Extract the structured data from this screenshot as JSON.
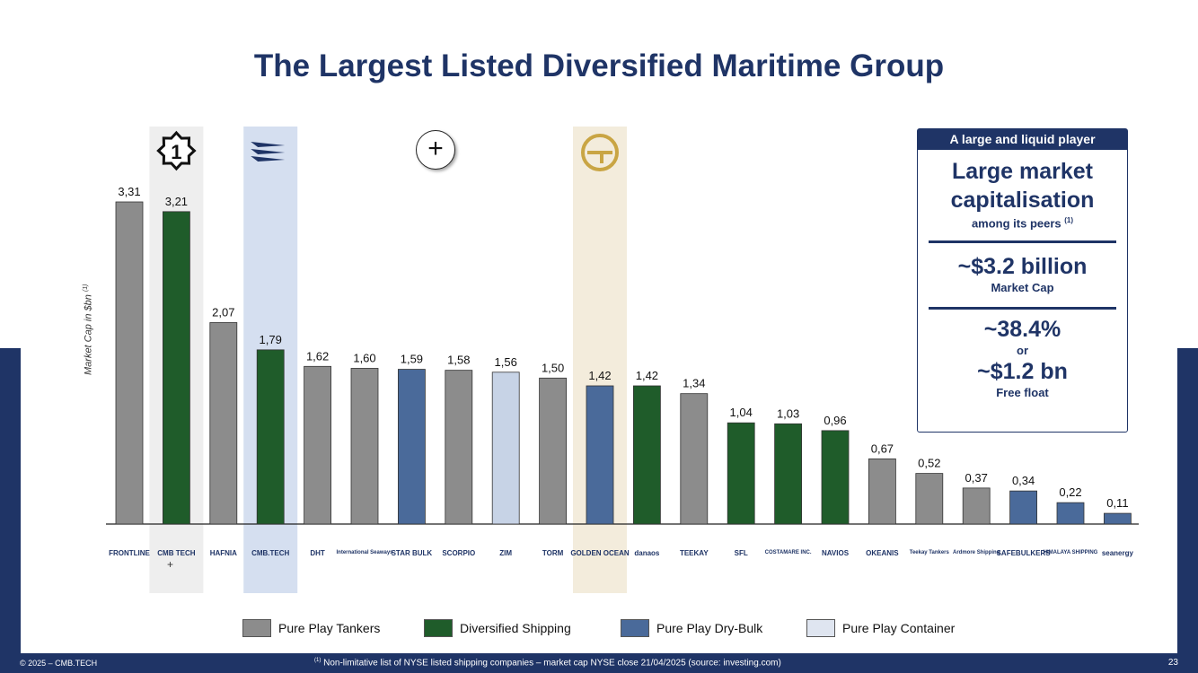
{
  "title": "The Largest Listed Diversified Maritime Group",
  "highlight_marker": "1",
  "plus_sign": "+",
  "chart_data": {
    "type": "bar",
    "ylabel": "Market Cap in $bn",
    "ylabel_note": "(1)",
    "categories": [
      "FRONTLINE",
      "CMB.TECH + Golden Ocean",
      "Hafnia",
      "CMB.TECH",
      "DHT",
      "International Seaways",
      "Star Bulk",
      "Scorpio Tankers",
      "ZIM",
      "TORM",
      "Golden Ocean",
      "Danaos",
      "Teekay",
      "SFL",
      "Costamare",
      "Navios Maritime Partners",
      "Okeanis",
      "Teekay Tankers",
      "Ardmore Shipping",
      "Safe Bulkers",
      "Himalaya Shipping",
      "Seanergy"
    ],
    "values": [
      3.31,
      3.21,
      2.07,
      1.79,
      1.62,
      1.6,
      1.59,
      1.58,
      1.56,
      1.5,
      1.42,
      1.42,
      1.34,
      1.04,
      1.03,
      0.96,
      0.67,
      0.52,
      0.37,
      0.34,
      0.22,
      0.11
    ],
    "value_labels": [
      "3,31",
      "3,21",
      "2,07",
      "1,79",
      "1,62",
      "1,60",
      "1,59",
      "1,58",
      "1,56",
      "1,50",
      "1,42",
      "1,42",
      "1,34",
      "1,04",
      "1,03",
      "0,96",
      "0,67",
      "0,52",
      "0,37",
      "0,34",
      "0,22",
      "0,11"
    ],
    "groups": [
      "tanker",
      "diversified",
      "tanker",
      "diversified",
      "tanker",
      "tanker",
      "drybulk",
      "tanker",
      "container",
      "tanker",
      "drybulk",
      "diversified",
      "tanker",
      "diversified",
      "diversified",
      "diversified",
      "tanker",
      "tanker",
      "tanker",
      "drybulk",
      "drybulk",
      "drybulk"
    ],
    "highlighted": [
      1,
      3,
      10
    ],
    "legend": [
      {
        "key": "tanker",
        "label": "Pure Play Tankers",
        "color": "#8c8c8c"
      },
      {
        "key": "diversified",
        "label": "Diversified Shipping",
        "color": "#1f5c2a"
      },
      {
        "key": "drybulk",
        "label": "Pure Play Dry-Bulk",
        "color": "#4a6a9a"
      },
      {
        "key": "container",
        "label": "Pure Play Container",
        "color": "#c7d3e6"
      }
    ],
    "ylim": [
      0,
      3.6
    ],
    "grid": false
  },
  "logos": [
    "FRONTLINE",
    "CMB TECH",
    "HAFNIA",
    "CMB.TECH",
    "DHT",
    "International Seaways",
    "STAR BULK",
    "SCORPIO",
    "ZIM",
    "TORM",
    "GOLDEN OCEAN",
    "danaos",
    "TEEKAY",
    "SFL",
    "COSTAMARE INC.",
    "NAVIOS",
    "OKEANIS",
    "Teekay Tankers",
    "Ardmore Shipping",
    "SAFEBULKERS",
    "HIMALAYA SHIPPING",
    "seanergy"
  ],
  "info_box": {
    "header": "A large and liquid player",
    "cap_title_line1": "Large market",
    "cap_title_line2": "capitalisation",
    "cap_sub": "among its peers",
    "cap_sub_note": "(1)",
    "market_cap_value": "~$3.2 billion",
    "market_cap_label": "Market Cap",
    "float_pct": "~38.4%",
    "float_or": "or",
    "float_value": "~$1.2 bn",
    "float_label": "Free float"
  },
  "footer": {
    "copyright": "© 2025 – CMB.TECH",
    "note_marker": "(1)",
    "note": "Non-limitative list of NYSE listed shipping companies – market cap NYSE close 21/04/2025 (source: investing.com)",
    "page": "23"
  },
  "colors": {
    "navy": "#1f3466",
    "highlight_blue": "#d5dff0",
    "highlight_gold": "#f3ecdc",
    "highlight_grey": "#eeeeee"
  }
}
